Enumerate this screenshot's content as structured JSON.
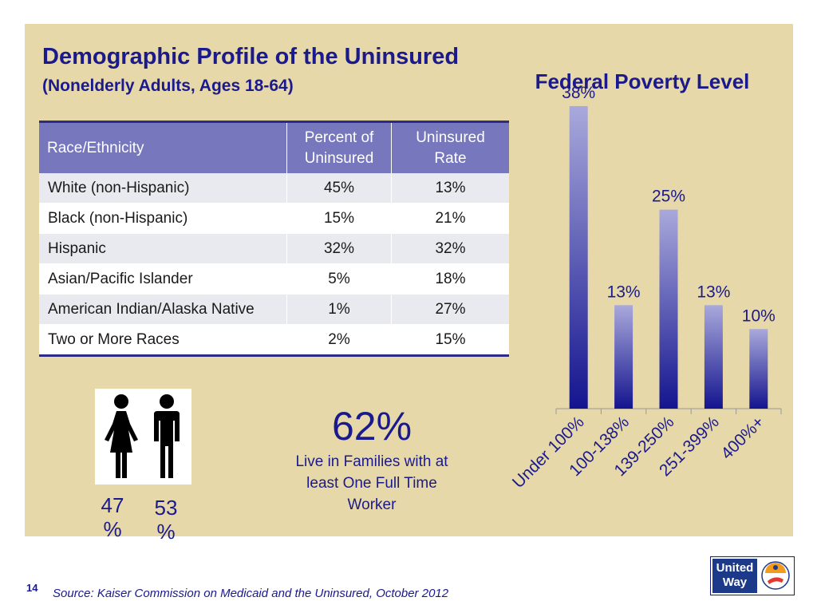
{
  "title": "Demographic Profile of the Uninsured",
  "subtitle": "(Nonelderly Adults, Ages 18-64)",
  "table": {
    "headers": [
      "Race/Ethnicity",
      "Percent of Uninsured",
      "Uninsured Rate"
    ],
    "rows": [
      [
        "White (non-Hispanic)",
        "45%",
        "13%"
      ],
      [
        "Black (non-Hispanic)",
        "15%",
        "21%"
      ],
      [
        "Hispanic",
        "32%",
        "32%"
      ],
      [
        "Asian/Pacific Islander",
        "5%",
        "18%"
      ],
      [
        "American Indian/Alaska Native",
        "1%",
        "27%"
      ],
      [
        "Two or More Races",
        "2%",
        "15%"
      ]
    ]
  },
  "gender": {
    "female_pct": "47 %",
    "male_pct": "53 %"
  },
  "families": {
    "big_value": "62%",
    "caption": "Live in Families with at least One Full Time Worker"
  },
  "chart_data": {
    "type": "bar",
    "title": "Federal Poverty Level",
    "categories": [
      "Under 100%",
      "100-138%",
      "139-250%",
      "251-399%",
      "400%+"
    ],
    "values": [
      38,
      13,
      25,
      13,
      10
    ],
    "data_labels": [
      "38%",
      "13%",
      "25%",
      "13%",
      "10%"
    ],
    "ylim": [
      0,
      40
    ],
    "grid": false,
    "bar_gradient": [
      "#a9a9dc",
      "#14148f"
    ]
  },
  "footer": {
    "slide_number": "14",
    "source": "Source: Kaiser Commission on Medicaid and the Uninsured, October 2012"
  },
  "logo": {
    "text_line1": "United",
    "text_line2": "Way"
  },
  "colors": {
    "panel": "#e7d8a9",
    "accent": "#1a1a8c",
    "header": "#7677bd"
  }
}
